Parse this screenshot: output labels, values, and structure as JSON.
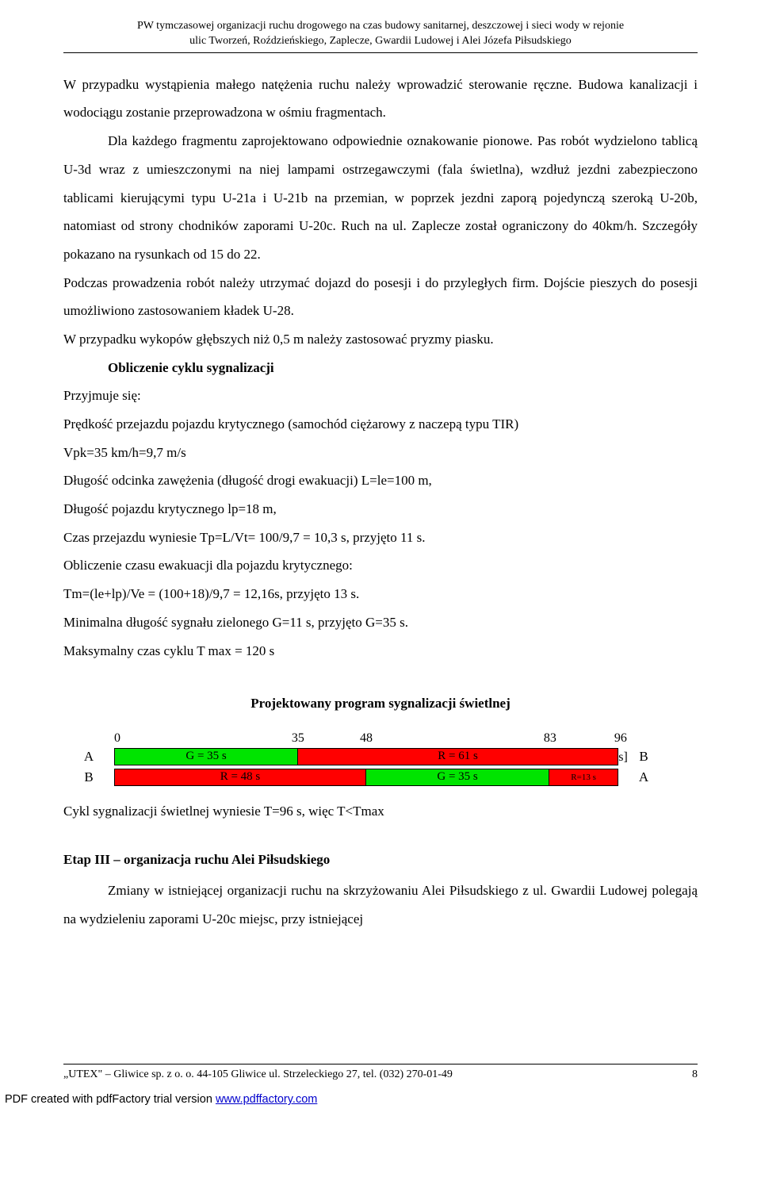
{
  "header": {
    "line1": "PW tymczasowej organizacji ruchu drogowego na czas budowy sanitarnej, deszczowej i sieci wody w rejonie",
    "line2": "ulic Tworzeń, Roździeńskiego, Zaplecze, Gwardii Ludowej i Alei Józefa Piłsudskiego"
  },
  "para1": "W przypadku wystąpienia małego natężenia ruchu należy wprowadzić sterowanie ręczne. Budowa kanalizacji i wodociągu zostanie przeprowadzona w ośmiu fragmentach.",
  "para2": "Dla każdego fragmentu zaprojektowano odpowiednie oznakowanie pionowe. Pas robót wydzielono tablicą U-3d wraz z umieszczonymi na niej lampami ostrzegawczymi (fala świetlna), wzdłuż jezdni zabezpieczono tablicami kierującymi typu U-21a i U-21b na przemian, w poprzek jezdni zaporą pojedynczą szeroką U-20b, natomiast od strony chodników zaporami U-20c. Ruch na ul. Zaplecze został ograniczony do 40km/h. Szczegóły pokazano na rysunkach od 15 do 22.",
  "para3": "Podczas prowadzenia robót należy utrzymać dojazd do posesji i do przyległych firm. Dojście pieszych do posesji umożliwiono zastosowaniem kładek U-28.",
  "para4": "W przypadku wykopów głębszych niż 0,5 m należy zastosować pryzmy piasku.",
  "calcTitle": "Obliczenie cyklu sygnalizacji",
  "calcLines": {
    "l1": "Przyjmuje się:",
    "l2": "Prędkość przejazdu pojazdu krytycznego (samochód ciężarowy z naczepą typu TIR)",
    "l3": "Vpk=35 km/h=9,7 m/s",
    "l4": "Długość odcinka zawężenia (długość drogi ewakuacji) L=le=100 m,",
    "l5": "Długość pojazdu krytycznego lp=18 m,",
    "l6": "Czas przejazdu wyniesie Tp=L/Vt= 100/9,7 = 10,3 s, przyjęto 11 s.",
    "l7": "Obliczenie czasu ewakuacji dla pojazdu krytycznego:",
    "l8": "Tm=(le+lp)/Ve = (100+18)/9,7 = 12,16s, przyjęto 13 s.",
    "l9": "Minimalna długość sygnału zielonego G=11 s, przyjęto G=35 s.",
    "l10": "Maksymalny czas cyklu T max = 120 s"
  },
  "chart": {
    "title": "Projektowany program sygnalizacji świetlnej",
    "total": 96,
    "widthPx": 636,
    "ticks": [
      {
        "pos": 0,
        "label": "0"
      },
      {
        "pos": 35,
        "label": "35"
      },
      {
        "pos": 48,
        "label": "48"
      },
      {
        "pos": 83,
        "label": "83"
      },
      {
        "pos": 96,
        "label": "96 [s]"
      }
    ],
    "rows": [
      {
        "leftLabel": "A",
        "rightLabel": "B",
        "segments": [
          {
            "len": 35,
            "text": "G = 35 s",
            "bg": "#00e400",
            "fg": "#000000"
          },
          {
            "len": 61,
            "text": "R = 61 s",
            "bg": "#ff0000",
            "fg": "#000000"
          }
        ]
      },
      {
        "leftLabel": "B",
        "rightLabel": "A",
        "segments": [
          {
            "len": 48,
            "text": "R = 48 s",
            "bg": "#ff0000",
            "fg": "#000000"
          },
          {
            "len": 35,
            "text": "G = 35 s",
            "bg": "#00e400",
            "fg": "#000000"
          },
          {
            "len": 13,
            "text": "R=13 s",
            "bg": "#ff0000",
            "fg": "#000000",
            "small": true
          }
        ]
      }
    ]
  },
  "afterChart": "Cykl sygnalizacji świetlnej wyniesie T=96 s, więc T<Tmax",
  "etapTitle": "Etap III – organizacja ruchu Alei Piłsudskiego",
  "etapBody": "Zmiany w istniejącej organizacji ruchu na skrzyżowaniu Alei Piłsudskiego z ul. Gwardii Ludowej polegają na wydzieleniu zaporami U-20c miejsc, przy istniejącej",
  "footer": {
    "left": "„UTEX\" – Gliwice sp. z o. o. 44-105 Gliwice ul. Strzeleckiego 27, tel. (032) 270-01-49",
    "pageNum": "8"
  },
  "pdfNote": {
    "prefix": "PDF created with pdfFactory trial version ",
    "link": "www.pdffactory.com"
  }
}
